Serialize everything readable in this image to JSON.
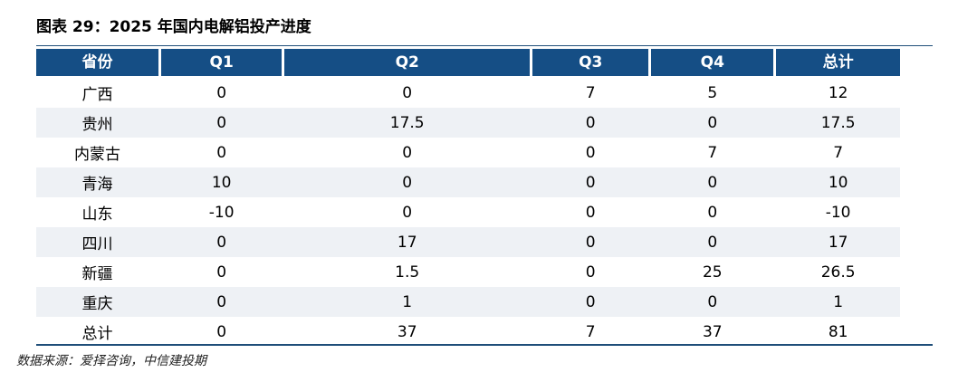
{
  "title": "图表 29：2025 年国内电解铝投产进度",
  "source": "数据来源：爱择咨询，中信建投期",
  "chart_data": {
    "type": "table",
    "columns": [
      "省份",
      "Q1",
      "Q2",
      "Q3",
      "Q4",
      "总计"
    ],
    "rows": [
      [
        "广西",
        "0",
        "0",
        "7",
        "5",
        "12"
      ],
      [
        "贵州",
        "0",
        "17.5",
        "0",
        "0",
        "17.5"
      ],
      [
        "内蒙古",
        "0",
        "0",
        "0",
        "7",
        "7"
      ],
      [
        "青海",
        "10",
        "0",
        "0",
        "0",
        "10"
      ],
      [
        "山东",
        "-10",
        "0",
        "0",
        "0",
        "-10"
      ],
      [
        "四川",
        "0",
        "17",
        "0",
        "0",
        "17"
      ],
      [
        "新疆",
        "0",
        "1.5",
        "0",
        "25",
        "26.5"
      ],
      [
        "重庆",
        "0",
        "1",
        "0",
        "0",
        "1"
      ],
      [
        "总计",
        "0",
        "37",
        "7",
        "37",
        "81"
      ]
    ]
  }
}
